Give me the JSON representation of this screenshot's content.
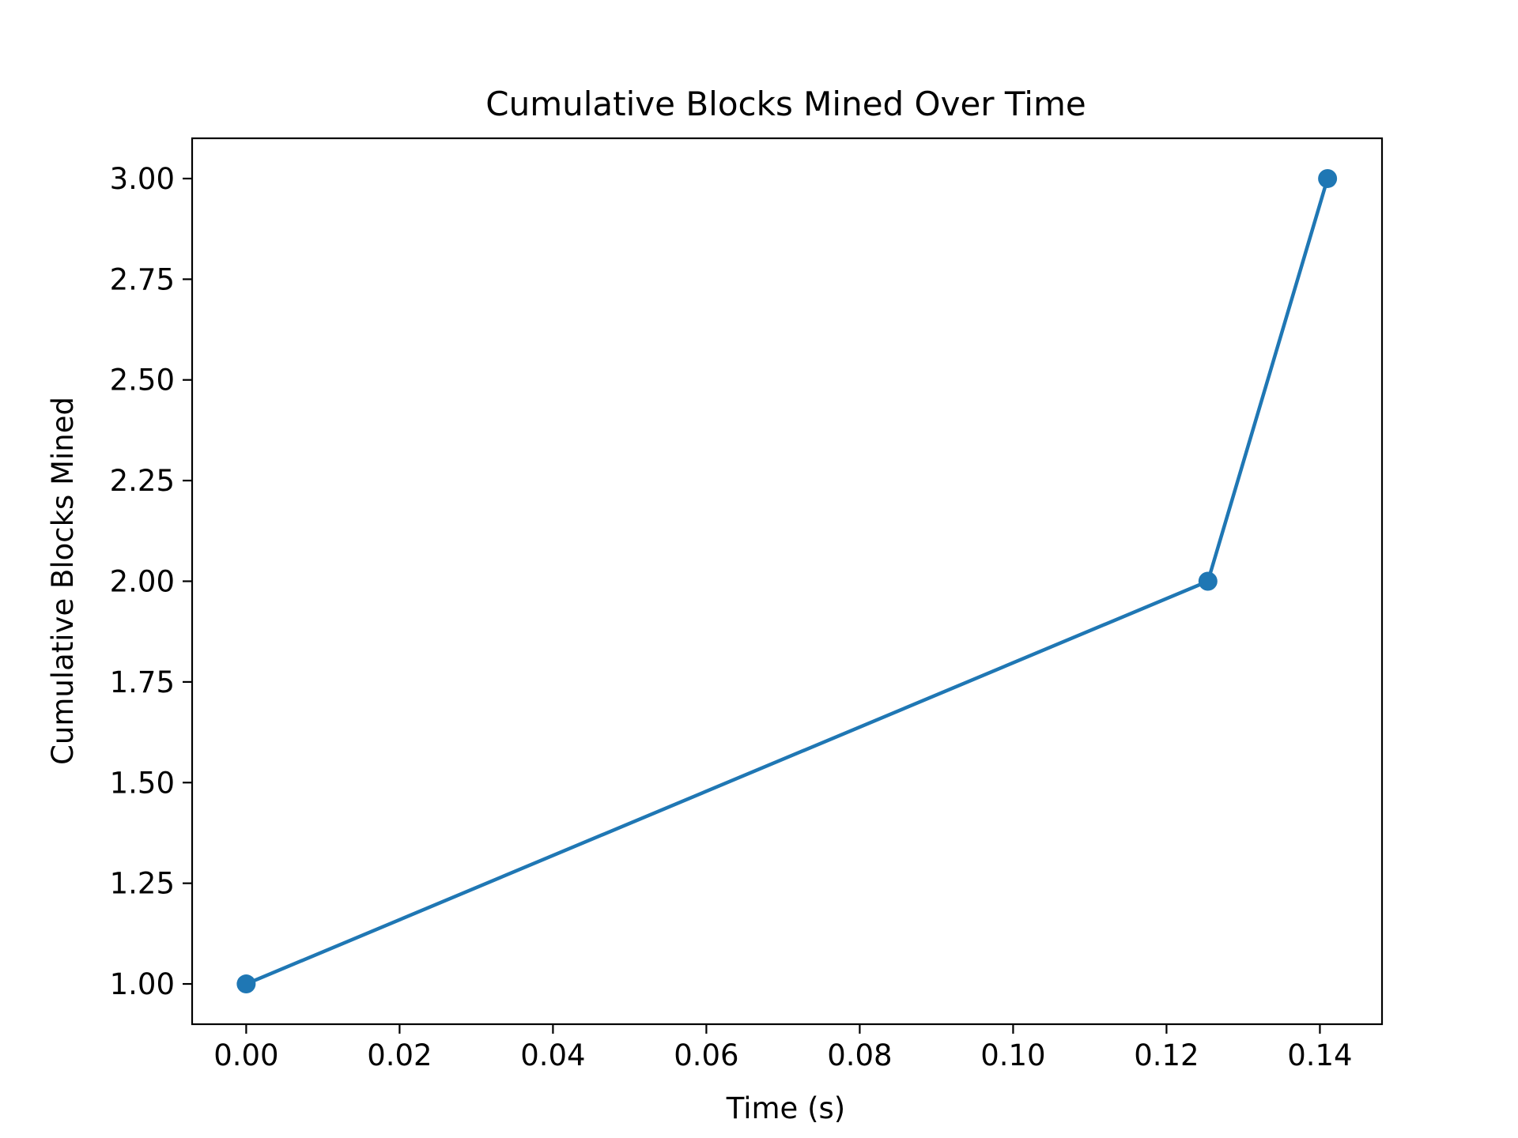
{
  "chart_data": {
    "type": "line",
    "title": "Cumulative Blocks Mined Over Time",
    "xlabel": "Time (s)",
    "ylabel": "Cumulative Blocks Mined",
    "xlim": [
      -0.00705,
      0.1481
    ],
    "ylim": [
      0.9,
      3.1
    ],
    "xticks": [
      0.0,
      0.02,
      0.04,
      0.06,
      0.08,
      0.1,
      0.12,
      0.14
    ],
    "xtick_labels": [
      "0.00",
      "0.02",
      "0.04",
      "0.06",
      "0.08",
      "0.10",
      "0.12",
      "0.14"
    ],
    "yticks": [
      1.0,
      1.25,
      1.5,
      1.75,
      2.0,
      2.25,
      2.5,
      2.75,
      3.0
    ],
    "ytick_labels": [
      "1.00",
      "1.25",
      "1.50",
      "1.75",
      "2.00",
      "2.25",
      "2.50",
      "2.75",
      "3.00"
    ],
    "grid": false,
    "series": [
      {
        "color": "#1f77b4",
        "marker": "circle",
        "x": [
          0.0,
          0.1254,
          0.141
        ],
        "y": [
          1.0,
          2.0,
          3.0
        ]
      }
    ]
  }
}
